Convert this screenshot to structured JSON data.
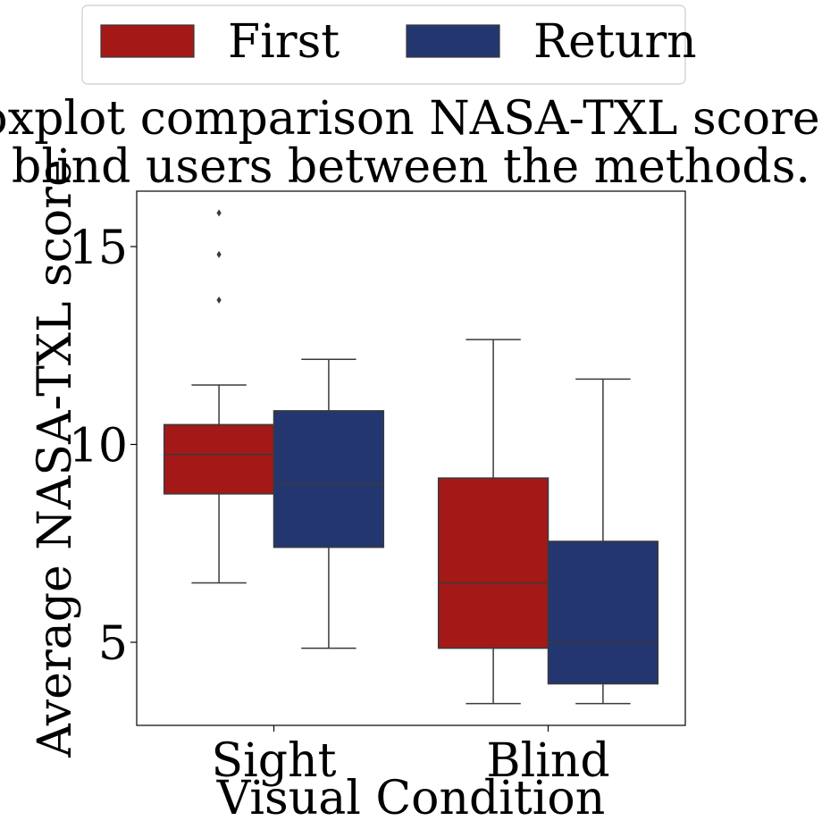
{
  "chart_data": {
    "type": "boxplot",
    "title": "Boxplot comparison NASA-TXL score of blind users between the methods.",
    "title_lines": [
      "Boxplot comparison NASA-TXL score of",
      "blind users between the methods."
    ],
    "xlabel": "Visual Condition",
    "ylabel": "Average NASA-TXL score",
    "categories": [
      "Sight",
      "Blind"
    ],
    "ylim": [
      2.9,
      16.4
    ],
    "yticks": [
      {
        "value": 5,
        "label": "5"
      },
      {
        "value": 10,
        "label": "10"
      },
      {
        "value": 15,
        "label": "15"
      }
    ],
    "grid": false,
    "legend": {
      "position": "top",
      "columns": 2
    },
    "series": [
      {
        "name": "First",
        "color": "#a41818",
        "boxes": [
          {
            "category": "Sight",
            "whislo": 6.5,
            "q1": 8.75,
            "median": 9.75,
            "q3": 10.5,
            "whishi": 11.5,
            "fliers": [
              13.65,
              14.8,
              15.85
            ]
          },
          {
            "category": "Blind",
            "whislo": 3.45,
            "q1": 4.85,
            "median": 6.5,
            "q3": 9.15,
            "whishi": 12.65,
            "fliers": []
          }
        ]
      },
      {
        "name": "Return",
        "color": "#233670",
        "boxes": [
          {
            "category": "Sight",
            "whislo": 4.85,
            "q1": 7.4,
            "median": 9.0,
            "q3": 10.85,
            "whishi": 12.15,
            "fliers": []
          },
          {
            "category": "Blind",
            "whislo": 3.45,
            "q1": 3.95,
            "median": 5.0,
            "q3": 7.55,
            "whishi": 11.65,
            "fliers": []
          }
        ]
      }
    ]
  }
}
